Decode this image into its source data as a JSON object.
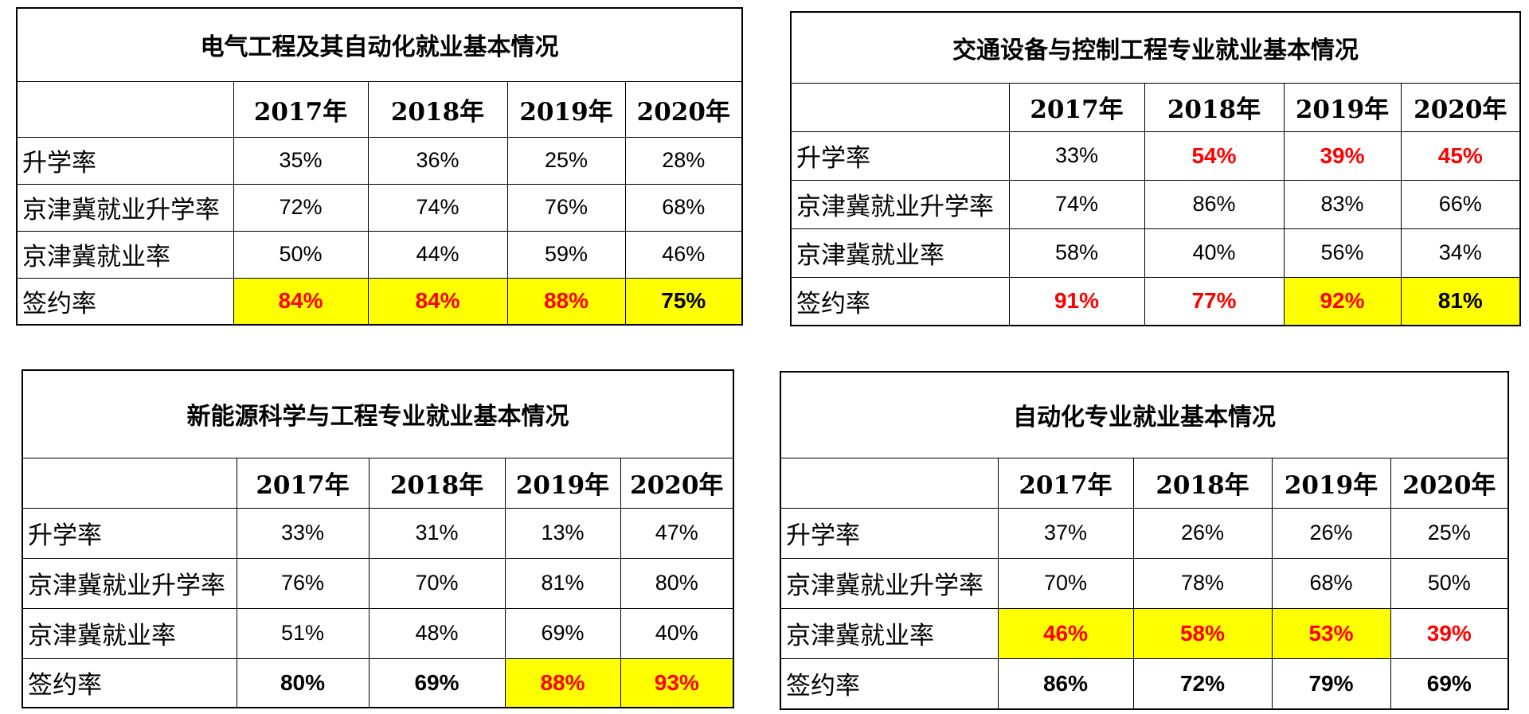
{
  "tables": [
    {
      "title": "电气工程及其自动化就业基本情况",
      "years": [
        "2017年",
        "2018年",
        "2019年",
        "2020年"
      ],
      "rows": [
        {
          "label": "升学率",
          "values": [
            "35%",
            "36%",
            "25%",
            "28%"
          ]
        },
        {
          "label": "京津冀就业升学率",
          "values": [
            "72%",
            "74%",
            "76%",
            "68%"
          ]
        },
        {
          "label": "京津冀就业率",
          "values": [
            "50%",
            "44%",
            "59%",
            "46%"
          ]
        },
        {
          "label": "签约率",
          "values": [
            "84%",
            "84%",
            "88%",
            "75%"
          ]
        }
      ]
    },
    {
      "title": "交通设备与控制工程专业就业基本情况",
      "years": [
        "2017年",
        "2018年",
        "2019年",
        "2020年"
      ],
      "rows": [
        {
          "label": "升学率",
          "values": [
            "33%",
            "54%",
            "39%",
            "45%"
          ]
        },
        {
          "label": "京津冀就业升学率",
          "values": [
            "74%",
            "86%",
            "83%",
            "66%"
          ]
        },
        {
          "label": "京津冀就业率",
          "values": [
            "58%",
            "40%",
            "56%",
            "34%"
          ]
        },
        {
          "label": "签约率",
          "values": [
            "91%",
            "77%",
            "92%",
            "81%"
          ]
        }
      ]
    },
    {
      "title": "新能源科学与工程专业就业基本情况",
      "years": [
        "2017年",
        "2018年",
        "2019年",
        "2020年"
      ],
      "rows": [
        {
          "label": "升学率",
          "values": [
            "33%",
            "31%",
            "13%",
            "47%"
          ]
        },
        {
          "label": "京津冀就业升学率",
          "values": [
            "76%",
            "70%",
            "81%",
            "80%"
          ]
        },
        {
          "label": "京津冀就业率",
          "values": [
            "51%",
            "48%",
            "69%",
            "40%"
          ]
        },
        {
          "label": "签约率",
          "values": [
            "80%",
            "69%",
            "88%",
            "93%"
          ]
        }
      ]
    },
    {
      "title": "自动化专业就业基本情况",
      "years": [
        "2017年",
        "2018年",
        "2019年",
        "2020年"
      ],
      "rows": [
        {
          "label": "升学率",
          "values": [
            "37%",
            "26%",
            "26%",
            "25%"
          ]
        },
        {
          "label": "京津冀就业升学率",
          "values": [
            "70%",
            "78%",
            "68%",
            "50%"
          ]
        },
        {
          "label": "京津冀就业率",
          "values": [
            "46%",
            "58%",
            "53%",
            "39%"
          ]
        },
        {
          "label": "签约率",
          "values": [
            "86%",
            "72%",
            "79%",
            "69%"
          ]
        }
      ]
    }
  ],
  "colors": {
    "highlight": "#ffff00",
    "emphasis_text": "#ff0000",
    "border": "#000000"
  }
}
